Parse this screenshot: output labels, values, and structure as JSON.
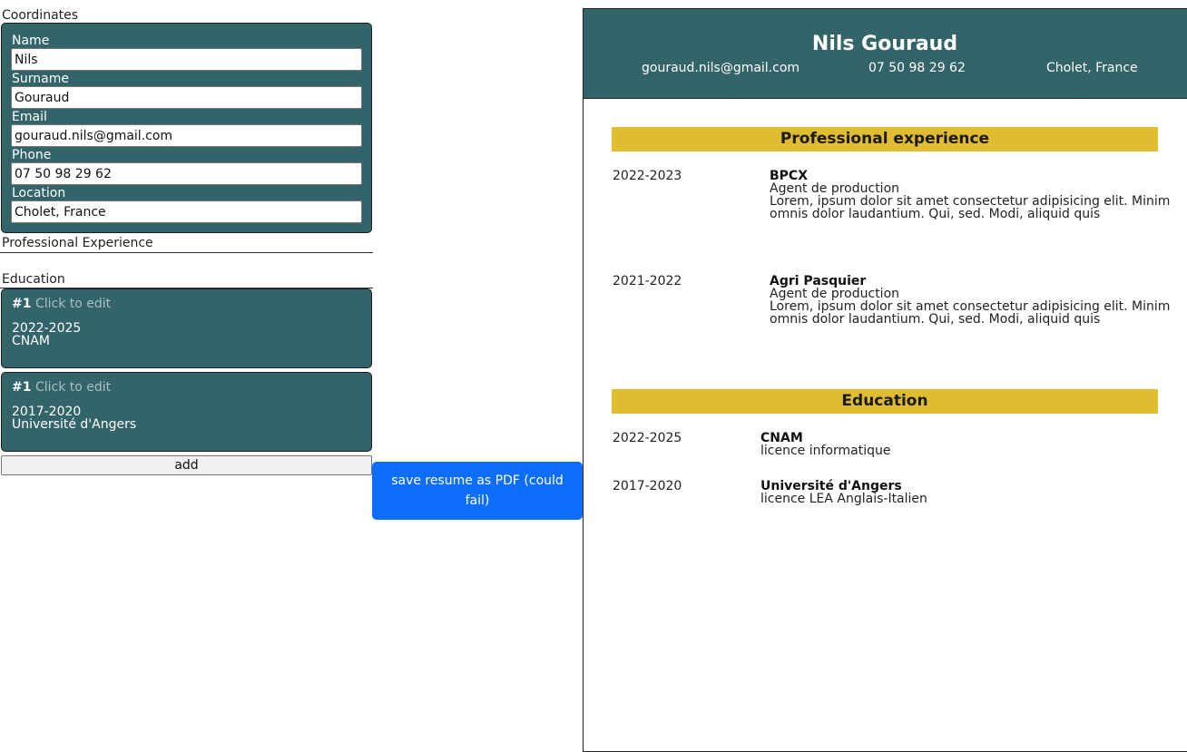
{
  "editor": {
    "coordinates_title": "Coordinates",
    "fields": {
      "name_label": "Name",
      "name_value": "Nils",
      "surname_label": "Surname",
      "surname_value": "Gouraud",
      "email_label": "Email",
      "email_value": "gouraud.nils@gmail.com",
      "phone_label": "Phone",
      "phone_value": "07 50 98 29 62",
      "location_label": "Location",
      "location_value": "Cholet, France"
    },
    "professional_experience_title": "Professional Experience",
    "education_title": "Education",
    "education_cards": [
      {
        "index": "#1",
        "edit_hint": "Click to edit",
        "period": "2022-2025",
        "school": "CNAM"
      },
      {
        "index": "#1",
        "edit_hint": "Click to edit",
        "period": "2017-2020",
        "school": "Université d'Angers"
      }
    ],
    "add_label": "add",
    "pdf_button_label": "save resume as PDF (could fail)"
  },
  "resume": {
    "name": "Nils Gouraud",
    "email": "gouraud.nils@gmail.com",
    "phone": "07 50 98 29 62",
    "location": "Cholet, France",
    "experience_title": "Professional experience",
    "experiences": [
      {
        "period": "2022-2023",
        "company": "BPCX",
        "role": "Agent de production",
        "description": "Lorem, ipsum dolor sit amet consectetur adipisicing elit. Minim omnis dolor laudantium. Qui, sed. Modi, aliquid quis"
      },
      {
        "period": "2021-2022",
        "company": "Agri Pasquier",
        "role": "Agent de production",
        "description": "Lorem, ipsum dolor sit amet consectetur adipisicing elit. Minim omnis dolor laudantium. Qui, sed. Modi, aliquid quis"
      }
    ],
    "education_title": "Education",
    "education": [
      {
        "period": "2022-2025",
        "school": "CNAM",
        "degree": "licence informatique"
      },
      {
        "period": "2017-2020",
        "school": "Université d'Angers",
        "degree": "licence LEA Anglais-Italien"
      }
    ]
  },
  "colors": {
    "panel_teal": "#33646a",
    "accent_yellow": "#e0bc33",
    "button_blue": "#0d6efd"
  }
}
